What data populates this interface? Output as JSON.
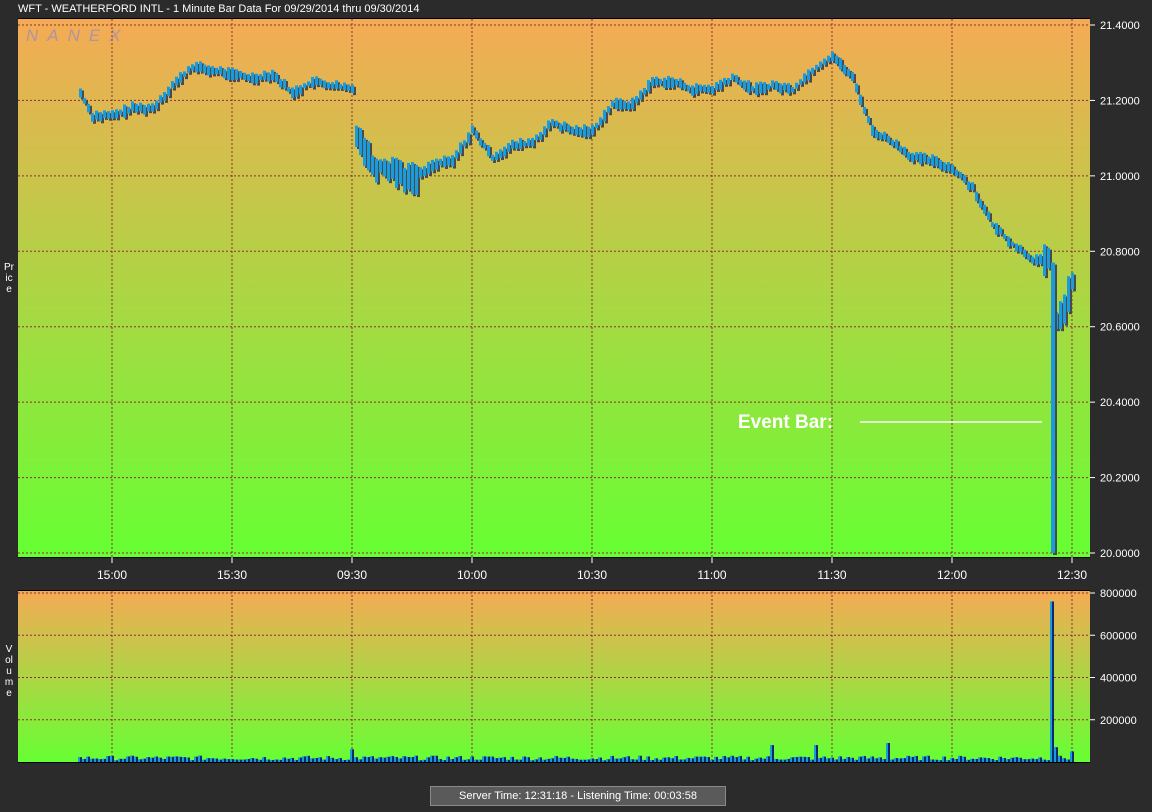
{
  "window": {
    "title": "WFT - WEATHERFORD INTL - 1 Minute Bar Data For 09/29/2014  thru  09/30/2014"
  },
  "watermark": "NANEX",
  "status": {
    "server_time_label": "Server Time:",
    "server_time": "12:31:18",
    "separator": " -  ",
    "listening_time_label": "Listening Time:",
    "listening_time": "00:03:58"
  },
  "colors": {
    "gradient_top": "#f5aa55",
    "gradient_bottom": "#66ff33",
    "bar_fill": "#1a9cdc",
    "bar_shadow": "#4a4a4a",
    "grid": "#8b3030"
  },
  "chart_data": [
    {
      "type": "bar",
      "subtype": "ohlc-1-minute",
      "title": "WFT - WEATHERFORD INTL - 1 Minute Bar Data For 09/29/2014  thru  09/30/2014",
      "ylabel": "Price",
      "ylim": [
        20.0,
        21.4
      ],
      "y_ticks": [
        "21.4000",
        "21.2000",
        "21.0000",
        "20.8000",
        "20.6000",
        "20.4000",
        "20.2000",
        "20.0000"
      ],
      "x_ticks": [
        "15:00",
        "15:30",
        "09:30",
        "10:00",
        "10:30",
        "11:00",
        "11:30",
        "12:00",
        "12:30"
      ],
      "grid": true,
      "price_path": [
        {
          "t": "14:52",
          "price": 21.22
        },
        {
          "t": "14:55",
          "price": 21.16
        },
        {
          "t": "15:00",
          "price": 21.16
        },
        {
          "t": "15:05",
          "price": 21.18
        },
        {
          "t": "15:10",
          "price": 21.18
        },
        {
          "t": "15:15",
          "price": 21.24
        },
        {
          "t": "15:20",
          "price": 21.29
        },
        {
          "t": "15:25",
          "price": 21.28
        },
        {
          "t": "15:30",
          "price": 21.27
        },
        {
          "t": "15:35",
          "price": 21.26
        },
        {
          "t": "15:40",
          "price": 21.27
        },
        {
          "t": "15:45",
          "price": 21.22
        },
        {
          "t": "15:50",
          "price": 21.25
        },
        {
          "t": "15:55",
          "price": 21.24
        },
        {
          "t": "16:00",
          "price": 21.23
        },
        {
          "t": "09:30",
          "price": 21.14
        },
        {
          "t": "09:35",
          "price": 21.03
        },
        {
          "t": "09:40",
          "price": 21.02
        },
        {
          "t": "09:45",
          "price": 20.99
        },
        {
          "t": "09:50",
          "price": 21.03
        },
        {
          "t": "09:55",
          "price": 21.04
        },
        {
          "t": "10:00",
          "price": 21.12
        },
        {
          "t": "10:05",
          "price": 21.05
        },
        {
          "t": "10:10",
          "price": 21.08
        },
        {
          "t": "10:15",
          "price": 21.09
        },
        {
          "t": "10:20",
          "price": 21.14
        },
        {
          "t": "10:25",
          "price": 21.12
        },
        {
          "t": "10:30",
          "price": 21.12
        },
        {
          "t": "10:35",
          "price": 21.19
        },
        {
          "t": "10:40",
          "price": 21.19
        },
        {
          "t": "10:45",
          "price": 21.25
        },
        {
          "t": "10:50",
          "price": 21.25
        },
        {
          "t": "10:55",
          "price": 21.23
        },
        {
          "t": "11:00",
          "price": 21.23
        },
        {
          "t": "11:05",
          "price": 21.26
        },
        {
          "t": "11:10",
          "price": 21.23
        },
        {
          "t": "11:15",
          "price": 21.24
        },
        {
          "t": "11:20",
          "price": 21.23
        },
        {
          "t": "11:25",
          "price": 21.28
        },
        {
          "t": "11:30",
          "price": 21.32
        },
        {
          "t": "11:35",
          "price": 21.26
        },
        {
          "t": "11:40",
          "price": 21.12
        },
        {
          "t": "11:45",
          "price": 21.09
        },
        {
          "t": "11:50",
          "price": 21.05
        },
        {
          "t": "11:55",
          "price": 21.04
        },
        {
          "t": "12:00",
          "price": 21.02
        },
        {
          "t": "12:05",
          "price": 20.97
        },
        {
          "t": "12:10",
          "price": 20.87
        },
        {
          "t": "12:15",
          "price": 20.82
        },
        {
          "t": "12:20",
          "price": 20.78
        },
        {
          "t": "12:24",
          "price": 20.77
        },
        {
          "t": "12:26",
          "price": 20.62
        },
        {
          "t": "12:28",
          "price": 20.65
        },
        {
          "t": "12:30",
          "price": 20.72
        }
      ],
      "event_bar": {
        "t": "12:25",
        "high": 20.77,
        "low": 20.0
      }
    },
    {
      "type": "bar",
      "ylabel": "Volume",
      "ylim": [
        0,
        800000
      ],
      "y_ticks": [
        "800000",
        "600000",
        "400000",
        "200000"
      ],
      "grid": true,
      "notable_bars": [
        {
          "t": "09:30",
          "value": 60000
        },
        {
          "t": "11:15",
          "value": 80000
        },
        {
          "t": "11:26",
          "value": 80000
        },
        {
          "t": "11:44",
          "value": 90000
        },
        {
          "t": "12:25",
          "value": 760000
        },
        {
          "t": "12:26",
          "value": 70000
        },
        {
          "t": "12:30",
          "value": 50000
        }
      ]
    }
  ],
  "annotations": {
    "event_label": "Event Bar:"
  }
}
